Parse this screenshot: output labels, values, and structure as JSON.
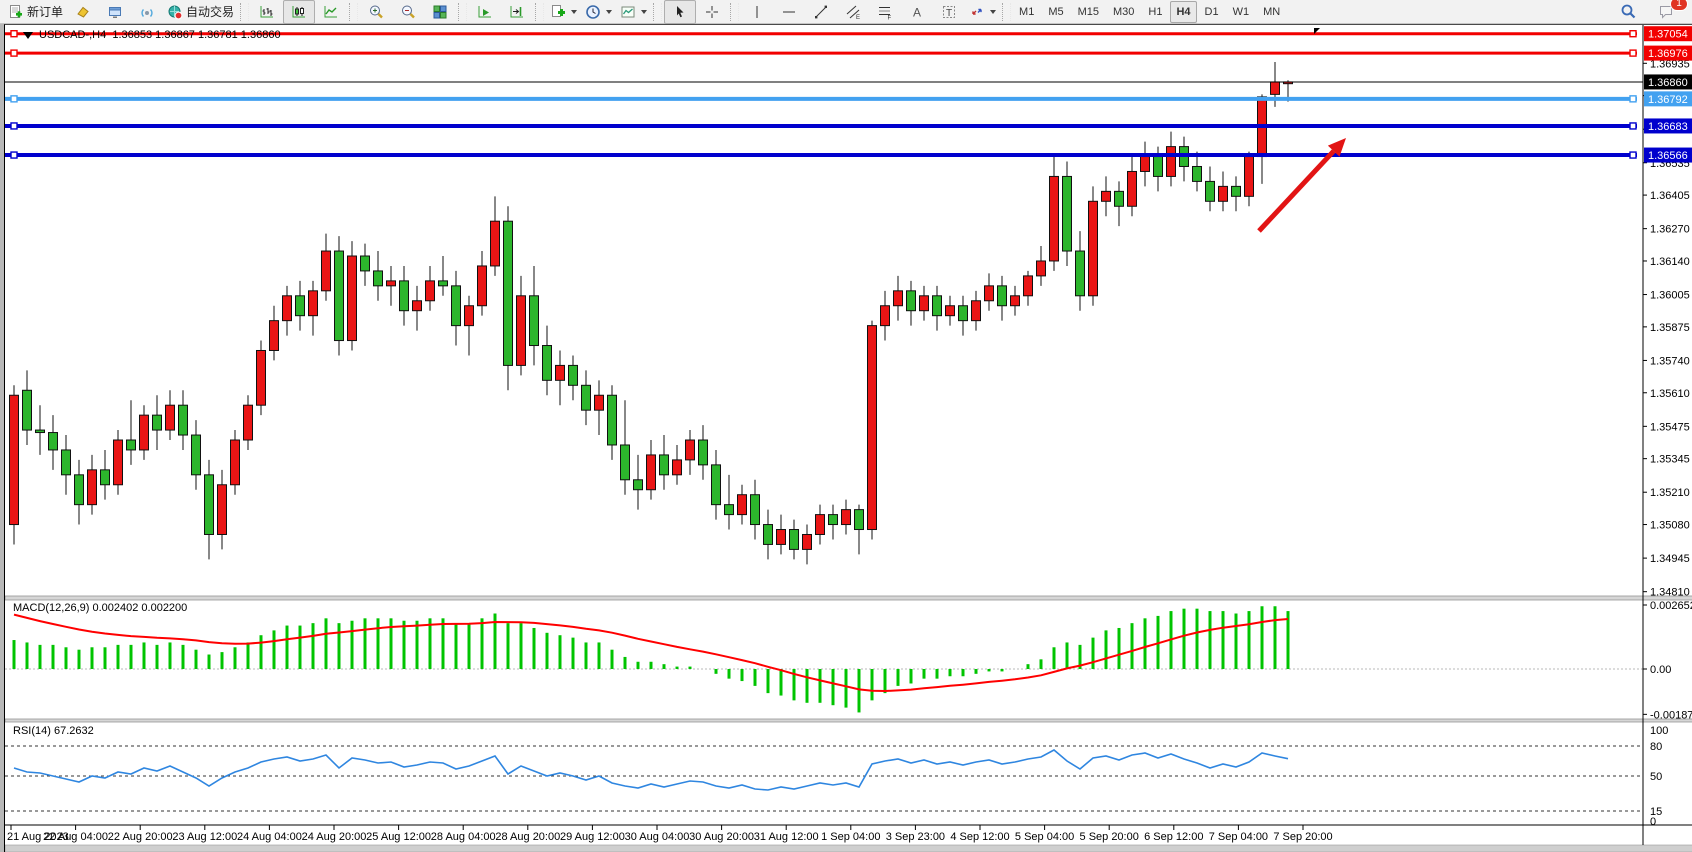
{
  "toolbar": {
    "new_order_label": "新订单",
    "autotrading_label": "自动交易",
    "timeframes": [
      "M1",
      "M5",
      "M15",
      "M30",
      "H1",
      "H4",
      "D1",
      "W1",
      "MN"
    ],
    "active_timeframe": "H4",
    "notification_badge": "1",
    "glyphs": {
      "text_tool": "A",
      "label_tool": "T",
      "channel_sub": "E",
      "fibo_sub": "F"
    }
  },
  "chart": {
    "title": "USDCAD-,H4  1.36853 1.36867 1.36781 1.36860",
    "symbol": "USDCAD-",
    "period": "H4",
    "ohlc": {
      "open": "1.36853",
      "high": "1.36867",
      "low": "1.36781",
      "close": "1.36860"
    },
    "current_price": "1.36860",
    "price_axis_ticks": [
      "1.36935",
      "1.36805",
      "1.36670",
      "1.36535",
      "1.36405",
      "1.36270",
      "1.36140",
      "1.36005",
      "1.35875",
      "1.35740",
      "1.35610",
      "1.35475",
      "1.35345",
      "1.35210",
      "1.35080",
      "1.34945",
      "1.34810"
    ],
    "hlines": [
      {
        "price": "1.37054",
        "color": "#f20000",
        "width": 3
      },
      {
        "price": "1.36976",
        "color": "#f20000",
        "width": 3
      },
      {
        "price": "1.36792",
        "color": "#42a1f0",
        "width": 4
      },
      {
        "price": "1.36683",
        "color": "#0000cd",
        "width": 4
      },
      {
        "price": "1.36566",
        "color": "#0000cd",
        "width": 4
      }
    ],
    "colors": {
      "bull": "#ea1515",
      "bear": "#2cb52c",
      "wick": "#111111",
      "macd_bar": "#00c400",
      "macd_signal": "#ff0000",
      "rsi_line": "#2f86e0",
      "price_line": "#000000",
      "annotation": "#e21414"
    },
    "candles": [
      [
        1.3508,
        1.3564,
        1.35,
        1.356
      ],
      [
        1.3562,
        1.357,
        1.354,
        1.3546
      ],
      [
        1.3546,
        1.3556,
        1.3536,
        1.3545
      ],
      [
        1.3545,
        1.3552,
        1.353,
        1.3538
      ],
      [
        1.3538,
        1.3544,
        1.352,
        1.3528
      ],
      [
        1.3528,
        1.3534,
        1.3508,
        1.3516
      ],
      [
        1.3516,
        1.3536,
        1.3512,
        1.353
      ],
      [
        1.353,
        1.3538,
        1.3518,
        1.3524
      ],
      [
        1.3524,
        1.3546,
        1.352,
        1.3542
      ],
      [
        1.3542,
        1.3558,
        1.3532,
        1.3538
      ],
      [
        1.3538,
        1.3556,
        1.3534,
        1.3552
      ],
      [
        1.3552,
        1.356,
        1.3538,
        1.3546
      ],
      [
        1.3546,
        1.3562,
        1.3542,
        1.3556
      ],
      [
        1.3556,
        1.3562,
        1.3538,
        1.3544
      ],
      [
        1.3544,
        1.355,
        1.3522,
        1.3528
      ],
      [
        1.3528,
        1.3534,
        1.3494,
        1.3504
      ],
      [
        1.3504,
        1.353,
        1.3498,
        1.3524
      ],
      [
        1.3524,
        1.3546,
        1.352,
        1.3542
      ],
      [
        1.3542,
        1.356,
        1.3538,
        1.3556
      ],
      [
        1.3556,
        1.3582,
        1.3552,
        1.3578
      ],
      [
        1.3578,
        1.3596,
        1.3574,
        1.359
      ],
      [
        1.359,
        1.3604,
        1.3584,
        1.36
      ],
      [
        1.36,
        1.3606,
        1.3586,
        1.3592
      ],
      [
        1.3592,
        1.3606,
        1.3584,
        1.3602
      ],
      [
        1.3602,
        1.3625,
        1.3598,
        1.3618
      ],
      [
        1.3618,
        1.3624,
        1.3576,
        1.3582
      ],
      [
        1.3582,
        1.3622,
        1.3578,
        1.3616
      ],
      [
        1.3616,
        1.3621,
        1.3604,
        1.361
      ],
      [
        1.361,
        1.3618,
        1.3598,
        1.3604
      ],
      [
        1.3604,
        1.3612,
        1.3596,
        1.3606
      ],
      [
        1.3606,
        1.3612,
        1.3588,
        1.3594
      ],
      [
        1.3594,
        1.3604,
        1.3586,
        1.3598
      ],
      [
        1.3598,
        1.3612,
        1.3594,
        1.3606
      ],
      [
        1.3606,
        1.3616,
        1.36,
        1.3604
      ],
      [
        1.3604,
        1.361,
        1.358,
        1.3588
      ],
      [
        1.3588,
        1.36,
        1.3576,
        1.3596
      ],
      [
        1.3596,
        1.3618,
        1.3592,
        1.3612
      ],
      [
        1.3612,
        1.364,
        1.3608,
        1.363
      ],
      [
        1.363,
        1.3636,
        1.3562,
        1.3572
      ],
      [
        1.3572,
        1.3608,
        1.3568,
        1.36
      ],
      [
        1.36,
        1.3612,
        1.3572,
        1.358
      ],
      [
        1.358,
        1.3588,
        1.356,
        1.3566
      ],
      [
        1.3566,
        1.3578,
        1.3556,
        1.3572
      ],
      [
        1.3572,
        1.3576,
        1.3558,
        1.3564
      ],
      [
        1.3564,
        1.357,
        1.3548,
        1.3554
      ],
      [
        1.3554,
        1.3566,
        1.3544,
        1.356
      ],
      [
        1.356,
        1.3564,
        1.3534,
        1.354
      ],
      [
        1.354,
        1.3558,
        1.352,
        1.3526
      ],
      [
        1.3526,
        1.3536,
        1.3514,
        1.3522
      ],
      [
        1.3522,
        1.3542,
        1.3518,
        1.3536
      ],
      [
        1.3536,
        1.3544,
        1.3522,
        1.3528
      ],
      [
        1.3528,
        1.354,
        1.3524,
        1.3534
      ],
      [
        1.3534,
        1.3546,
        1.3528,
        1.3542
      ],
      [
        1.3542,
        1.3548,
        1.3526,
        1.3532
      ],
      [
        1.3532,
        1.3538,
        1.351,
        1.3516
      ],
      [
        1.3516,
        1.3528,
        1.3506,
        1.3512
      ],
      [
        1.3512,
        1.3524,
        1.3508,
        1.352
      ],
      [
        1.352,
        1.3526,
        1.3502,
        1.3508
      ],
      [
        1.3508,
        1.3514,
        1.3494,
        1.35
      ],
      [
        1.35,
        1.3512,
        1.3496,
        1.3506
      ],
      [
        1.3506,
        1.351,
        1.3494,
        1.3498
      ],
      [
        1.3498,
        1.3508,
        1.3492,
        1.3504
      ],
      [
        1.3504,
        1.3516,
        1.35,
        1.3512
      ],
      [
        1.3512,
        1.3516,
        1.3502,
        1.3508
      ],
      [
        1.3508,
        1.3518,
        1.3504,
        1.3514
      ],
      [
        1.3514,
        1.3516,
        1.3496,
        1.3506
      ],
      [
        1.3506,
        1.359,
        1.3502,
        1.3588
      ],
      [
        1.3588,
        1.3602,
        1.3582,
        1.3596
      ],
      [
        1.3596,
        1.3608,
        1.359,
        1.3602
      ],
      [
        1.3602,
        1.3606,
        1.3588,
        1.3594
      ],
      [
        1.3594,
        1.3604,
        1.359,
        1.36
      ],
      [
        1.36,
        1.3604,
        1.3586,
        1.3592
      ],
      [
        1.3592,
        1.36,
        1.3588,
        1.3596
      ],
      [
        1.3596,
        1.36,
        1.3584,
        1.359
      ],
      [
        1.359,
        1.3602,
        1.3586,
        1.3598
      ],
      [
        1.3598,
        1.3609,
        1.3594,
        1.3604
      ],
      [
        1.3604,
        1.3608,
        1.359,
        1.3596
      ],
      [
        1.3596,
        1.3604,
        1.3592,
        1.36
      ],
      [
        1.36,
        1.361,
        1.3596,
        1.3608
      ],
      [
        1.3608,
        1.362,
        1.3604,
        1.3614
      ],
      [
        1.3614,
        1.3656,
        1.361,
        1.3648
      ],
      [
        1.3648,
        1.3654,
        1.3612,
        1.3618
      ],
      [
        1.3618,
        1.3626,
        1.3594,
        1.36
      ],
      [
        1.36,
        1.3644,
        1.3596,
        1.3638
      ],
      [
        1.3638,
        1.3648,
        1.3632,
        1.3642
      ],
      [
        1.3642,
        1.3646,
        1.3628,
        1.3636
      ],
      [
        1.3636,
        1.3656,
        1.3632,
        1.365
      ],
      [
        1.365,
        1.3662,
        1.3644,
        1.3656
      ],
      [
        1.3656,
        1.366,
        1.3642,
        1.3648
      ],
      [
        1.3648,
        1.3666,
        1.3644,
        1.366
      ],
      [
        1.366,
        1.3664,
        1.3646,
        1.3652
      ],
      [
        1.3652,
        1.3658,
        1.3642,
        1.3646
      ],
      [
        1.3646,
        1.3652,
        1.3634,
        1.3638
      ],
      [
        1.3638,
        1.365,
        1.3634,
        1.3644
      ],
      [
        1.3644,
        1.3648,
        1.3634,
        1.364
      ],
      [
        1.364,
        1.3658,
        1.3636,
        1.3656
      ],
      [
        1.3656,
        1.3681,
        1.3645,
        1.368
      ],
      [
        1.3681,
        1.3694,
        1.3676,
        1.3686
      ],
      [
        1.36853,
        1.36867,
        1.36781,
        1.3686
      ]
    ]
  },
  "macd": {
    "label": "MACD(12,26,9) 0.002402 0.002200",
    "main_value": "0.002402",
    "signal_value": "0.002200",
    "axis_ticks": [
      {
        "v": 0.002652,
        "label": "0.002652"
      },
      {
        "v": 0,
        "label": "0.00"
      },
      {
        "v": -0.001879,
        "label": "-0.001879"
      }
    ],
    "signal_start": 0.0024,
    "histogram": [
      0.0012,
      0.0011,
      0.001,
      0.001,
      0.0009,
      0.0008,
      0.0009,
      0.0009,
      0.001,
      0.001,
      0.0011,
      0.001,
      0.0011,
      0.001,
      0.0008,
      0.0006,
      0.0007,
      0.0009,
      0.0011,
      0.0014,
      0.0016,
      0.0018,
      0.0018,
      0.0019,
      0.0021,
      0.0019,
      0.002,
      0.0021,
      0.0021,
      0.0021,
      0.002,
      0.002,
      0.0021,
      0.0021,
      0.0019,
      0.0019,
      0.0021,
      0.0023,
      0.0019,
      0.0019,
      0.0017,
      0.0015,
      0.0014,
      0.0013,
      0.0011,
      0.0011,
      0.0008,
      0.0005,
      0.0003,
      0.0003,
      0.0002,
      0.0001,
      0.0001,
      0.0,
      -0.0002,
      -0.0004,
      -0.0005,
      -0.0007,
      -0.001,
      -0.0011,
      -0.0013,
      -0.0014,
      -0.0014,
      -0.0015,
      -0.0016,
      -0.0018,
      -0.0013,
      -0.001,
      -0.0007,
      -0.0006,
      -0.0004,
      -0.0004,
      -0.0003,
      -0.0003,
      -0.0002,
      -0.0001,
      -0.0001,
      0.0,
      0.0002,
      0.0004,
      0.0009,
      0.0011,
      0.001,
      0.0013,
      0.0016,
      0.0017,
      0.0019,
      0.0021,
      0.0022,
      0.0024,
      0.0025,
      0.0025,
      0.0024,
      0.0024,
      0.0023,
      0.0024,
      0.0026,
      0.0026,
      0.0024
    ]
  },
  "rsi": {
    "label": "RSI(14) 67.2632",
    "value": "67.2632",
    "levels": [
      80,
      50,
      15
    ],
    "axis_ticks": [
      {
        "v": 100,
        "label": "100"
      },
      {
        "v": 80,
        "label": "80"
      },
      {
        "v": 50,
        "label": "50"
      },
      {
        "v": 15,
        "label": "15"
      },
      {
        "v": 0,
        "label": "0"
      }
    ],
    "values": [
      58,
      54,
      53,
      50,
      47,
      44,
      50,
      48,
      54,
      52,
      58,
      55,
      60,
      54,
      48,
      40,
      48,
      54,
      58,
      64,
      67,
      69,
      65,
      67,
      71,
      58,
      68,
      66,
      63,
      64,
      59,
      61,
      64,
      63,
      57,
      60,
      65,
      70,
      52,
      60,
      55,
      50,
      53,
      50,
      46,
      50,
      43,
      40,
      38,
      42,
      39,
      42,
      45,
      44,
      40,
      38,
      41,
      37,
      36,
      39,
      37,
      40,
      43,
      41,
      43,
      39,
      62,
      65,
      67,
      63,
      66,
      62,
      64,
      61,
      64,
      66,
      62,
      64,
      67,
      69,
      76,
      65,
      57,
      68,
      70,
      66,
      71,
      73,
      68,
      72,
      67,
      63,
      58,
      62,
      59,
      64,
      73,
      70,
      67.26
    ]
  },
  "time_axis": {
    "labels": [
      "21 Aug 2023",
      "22 Aug 04:00",
      "22 Aug 20:00",
      "23 Aug 12:00",
      "24 Aug 04:00",
      "24 Aug 20:00",
      "25 Aug 12:00",
      "28 Aug 04:00",
      "28 Aug 20:00",
      "29 Aug 12:00",
      "30 Aug 04:00",
      "30 Aug 20:00",
      "31 Aug 12:00",
      "1 Sep 04:00",
      "3 Sep 23:00",
      "4 Sep 12:00",
      "5 Sep 04:00",
      "5 Sep 20:00",
      "6 Sep 12:00",
      "7 Sep 04:00",
      "7 Sep 20:00"
    ]
  }
}
